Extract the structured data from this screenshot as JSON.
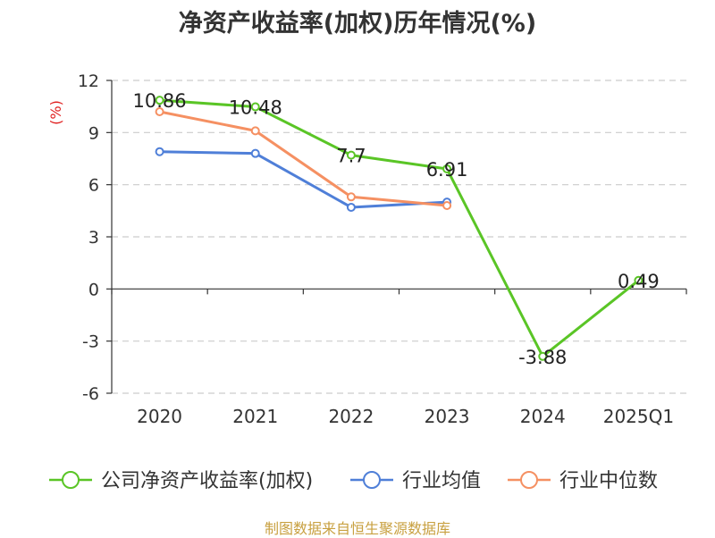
{
  "chart_data": {
    "type": "line",
    "title": "净资产收益率(加权)历年情况(%)",
    "ylabel": "(%)",
    "categories": [
      "2020",
      "2021",
      "2022",
      "2023",
      "2024",
      "2025Q1"
    ],
    "ylim": [
      -6,
      12
    ],
    "yticks": [
      "12",
      "9",
      "6",
      "3",
      "0",
      "-3",
      "-6"
    ],
    "grid": true,
    "legend_position": "bottom",
    "series": [
      {
        "name": "公司净资产收益率(加权)",
        "color": "#5ac526",
        "values": [
          10.86,
          10.48,
          7.7,
          6.91,
          -3.88,
          0.49
        ],
        "labels": [
          "10.86",
          "10.48",
          "7.7",
          "6.91",
          "-3.88",
          "0.49"
        ]
      },
      {
        "name": "行业均值",
        "color": "#4f7fd8",
        "values": [
          7.9,
          7.8,
          4.7,
          5.0,
          null,
          null
        ]
      },
      {
        "name": "行业中位数",
        "color": "#f59062",
        "values": [
          10.2,
          9.1,
          5.3,
          4.8,
          null,
          null
        ]
      }
    ]
  },
  "source": "制图数据来自恒生聚源数据库"
}
